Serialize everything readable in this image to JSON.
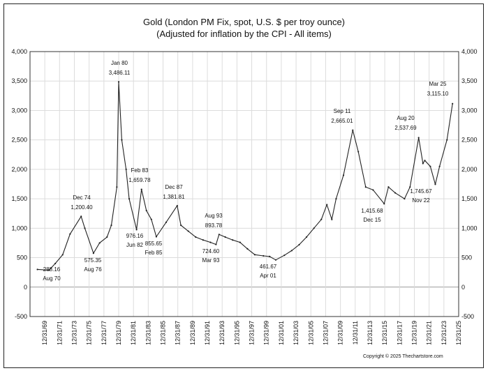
{
  "chart_data": {
    "type": "line",
    "title": "Gold (London PM Fix, spot, U.S. $ per troy ounce)",
    "subtitle": "(Adjusted for inflation by the CPI - All items)",
    "ylim": [
      -500,
      4000
    ],
    "yticks": [
      -500,
      0,
      500,
      1000,
      1500,
      2000,
      2500,
      3000,
      3500,
      4000
    ],
    "ytick_labels": [
      "-500",
      "0",
      "500",
      "1,000",
      "1,500",
      "2,000",
      "2,500",
      "3,000",
      "3,500",
      "4,000"
    ],
    "xlim": [
      "1968-01-01",
      "2025-12-31"
    ],
    "xtick_labels": [
      "12/31/69",
      "12/31/71",
      "12/31/73",
      "12/31/75",
      "12/31/77",
      "12/31/79",
      "12/31/81",
      "12/31/83",
      "12/31/85",
      "12/31/87",
      "12/31/89",
      "12/31/91",
      "12/31/93",
      "12/31/95",
      "12/31/97",
      "12/31/99",
      "12/31/01",
      "12/31/03",
      "12/31/05",
      "12/31/07",
      "12/31/09",
      "12/31/11",
      "12/31/13",
      "12/31/15",
      "12/31/17",
      "12/31/19",
      "12/31/21",
      "12/31/23",
      "12/31/25"
    ],
    "grid": true,
    "series": [
      {
        "x": [
          "1969-01-01",
          "1970-08-01",
          "1971-06-01",
          "1972-06-01",
          "1973-06-01",
          "1974-12-01",
          "1975-06-01",
          "1976-08-01",
          "1977-06-01",
          "1978-06-01",
          "1979-01-01",
          "1979-10-01",
          "1980-01-01",
          "1980-06-01",
          "1981-01-01",
          "1981-06-01",
          "1982-06-01",
          "1983-02-01",
          "1983-10-01",
          "1984-06-01",
          "1985-02-01",
          "1986-06-01",
          "1987-12-01",
          "1988-06-01",
          "1989-06-01",
          "1990-06-01",
          "1991-06-01",
          "1992-06-01",
          "1993-03-01",
          "1993-08-01",
          "1994-06-01",
          "1995-06-01",
          "1996-06-01",
          "1997-06-01",
          "1998-06-01",
          "1999-08-01",
          "2000-06-01",
          "2001-04-01",
          "2002-06-01",
          "2003-06-01",
          "2004-06-01",
          "2005-06-01",
          "2006-06-01",
          "2007-06-01",
          "2008-03-01",
          "2008-11-01",
          "2009-06-01",
          "2010-06-01",
          "2011-09-01",
          "2012-06-01",
          "2013-06-01",
          "2014-06-01",
          "2015-12-01",
          "2016-07-01",
          "2017-06-01",
          "2018-09-01",
          "2019-06-01",
          "2020-08-01",
          "2021-03-01",
          "2021-06-01",
          "2022-03-01",
          "2022-11-01",
          "2023-06-01",
          "2024-06-01",
          "2025-03-01"
        ],
        "values": [
          300,
          288.16,
          400,
          550,
          900,
          1200.4,
          1000,
          575.35,
          750,
          850,
          1050,
          1700,
          3486.11,
          2500,
          2000,
          1500,
          976.16,
          1659.78,
          1300,
          1150,
          855.65,
          1100,
          1381.81,
          1050,
          950,
          850,
          800,
          760,
          724.6,
          893.78,
          850,
          800,
          760,
          650,
          550,
          530,
          520,
          461.67,
          540,
          620,
          720,
          850,
          1000,
          1150,
          1400,
          1150,
          1500,
          1900,
          2665.01,
          2300,
          1700,
          1650,
          1415.68,
          1700,
          1600,
          1500,
          1700,
          2537.69,
          2100,
          2150,
          2050,
          1745.67,
          2050,
          2500,
          3115.1
        ]
      }
    ],
    "annotations": [
      {
        "label": "288.16",
        "date": "Aug 70"
      },
      {
        "label": "1,200.40",
        "date": "Dec 74"
      },
      {
        "label": "575.35",
        "date": "Aug 76"
      },
      {
        "label": "3,486.11",
        "date": "Jan 80"
      },
      {
        "label": "976.16",
        "date": "Jun 82"
      },
      {
        "label": "1,659.78",
        "date": "Feb 83"
      },
      {
        "label": "855.65",
        "date": "Feb 85"
      },
      {
        "label": "1,381.81",
        "date": "Dec 87"
      },
      {
        "label": "724.60",
        "date": "Mar 93"
      },
      {
        "label": "893.78",
        "date": "Aug 93"
      },
      {
        "label": "461.67",
        "date": "Apr 01"
      },
      {
        "label": "2,665.01",
        "date": "Sep 11"
      },
      {
        "label": "1,415.68",
        "date": "Dec 15"
      },
      {
        "label": "2,537.69",
        "date": "Aug 20"
      },
      {
        "label": "1,745.67",
        "date": "Nov 22"
      },
      {
        "label": "3,115.10",
        "date": "Mar 25"
      }
    ]
  },
  "copyright": "Copyright © 2025 Thechartstore.com",
  "colors": {
    "line": "#222222",
    "grid": "#dcdcdc",
    "axis": "#333333"
  }
}
